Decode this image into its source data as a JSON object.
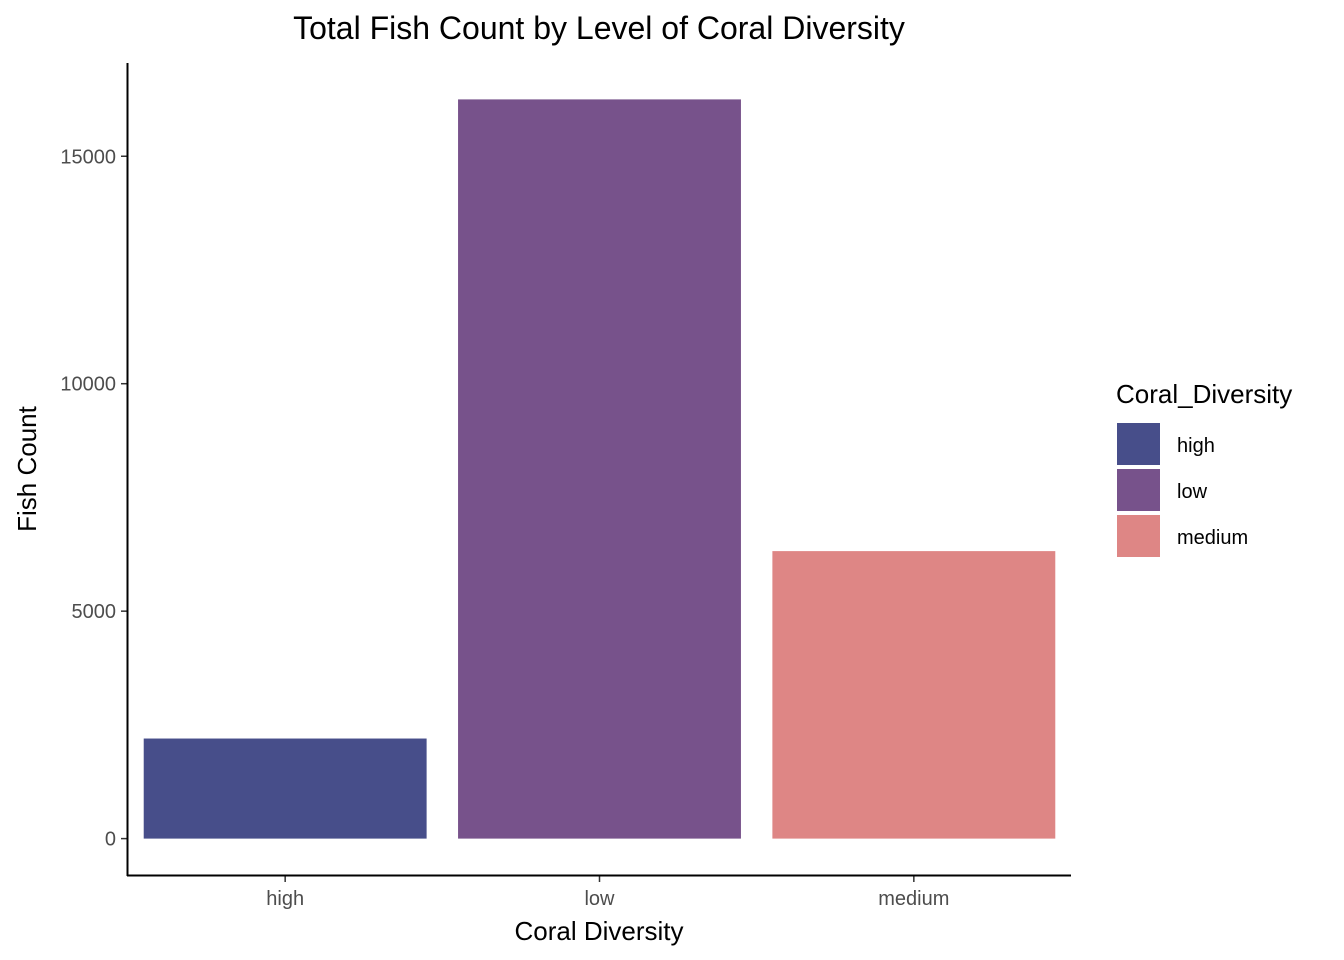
{
  "chart_data": {
    "type": "bar",
    "title": "Total Fish Count by Level of Coral Diversity",
    "xlabel": "Coral Diversity",
    "ylabel": "Fish Count",
    "categories": [
      "high",
      "low",
      "medium"
    ],
    "values": [
      2200,
      16250,
      6320
    ],
    "colors": [
      "#474e8a",
      "#77528b",
      "#de8685"
    ],
    "ylim": [
      -800,
      17050
    ],
    "yticks": [
      0,
      5000,
      10000,
      15000
    ],
    "ytick_labels": [
      "0",
      "5000",
      "10000",
      "15000"
    ],
    "grid": false,
    "legend": {
      "title": "Coral_Diversity",
      "position": "right",
      "items": [
        {
          "label": "high",
          "color": "#474e8a"
        },
        {
          "label": "low",
          "color": "#77528b"
        },
        {
          "label": "medium",
          "color": "#de8685"
        }
      ]
    }
  }
}
